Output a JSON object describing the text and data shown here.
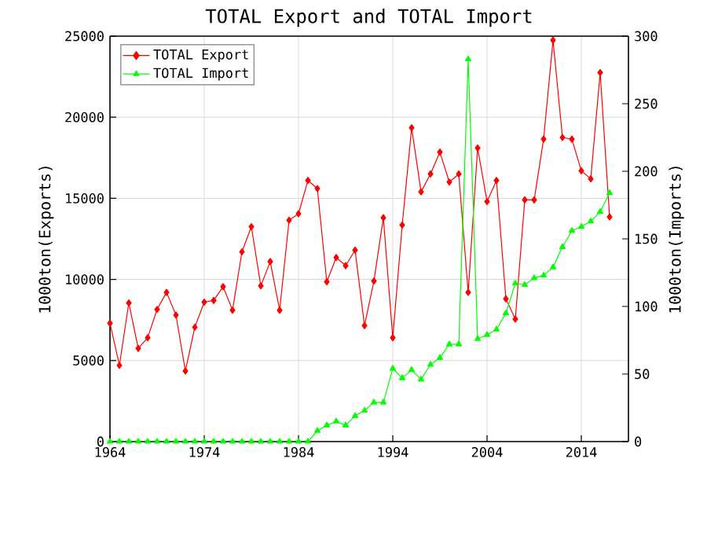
{
  "chart_data": {
    "type": "line",
    "title": "TOTAL Export and TOTAL Import",
    "ylabel": "1000ton(Exports)",
    "y2label": "1000ton(Imports)",
    "x": [
      1964,
      1965,
      1966,
      1967,
      1968,
      1969,
      1970,
      1971,
      1972,
      1973,
      1974,
      1975,
      1976,
      1977,
      1978,
      1979,
      1980,
      1981,
      1982,
      1983,
      1984,
      1985,
      1986,
      1987,
      1988,
      1989,
      1990,
      1991,
      1992,
      1993,
      1994,
      1995,
      1996,
      1997,
      1998,
      1999,
      2000,
      2001,
      2002,
      2003,
      2004,
      2005,
      2006,
      2007,
      2008,
      2009,
      2010,
      2011,
      2012,
      2013,
      2014,
      2015,
      2016,
      2017
    ],
    "series": [
      {
        "name": "TOTAL Export",
        "color": "#ff0000",
        "marker": "diamond",
        "values": [
          7300,
          4700,
          8550,
          5750,
          6400,
          8150,
          9200,
          7800,
          4350,
          7050,
          8600,
          8700,
          9550,
          8100,
          11700,
          13250,
          9600,
          11100,
          8100,
          13650,
          14050,
          16100,
          15600,
          9850,
          11350,
          10850,
          11800,
          7150,
          9900,
          13800,
          6400,
          13350,
          19350,
          15400,
          16500,
          17850,
          16000,
          16500,
          9200,
          18100,
          14800,
          16100,
          8800,
          7550,
          14900,
          14900,
          18650,
          24750,
          18750,
          18650,
          16700,
          16200,
          22750,
          13850
        ]
      },
      {
        "name": "TOTAL Import",
        "color": "#00ff00",
        "marker": "triangle",
        "axis": "y2",
        "values": [
          0,
          0,
          0,
          0,
          0,
          0,
          0,
          0,
          0,
          0,
          0,
          0,
          0,
          0,
          0,
          0,
          0,
          0,
          0,
          0,
          0,
          0,
          8,
          12,
          15,
          12,
          19,
          23,
          29,
          29,
          54,
          47,
          53,
          46,
          57,
          62,
          72,
          72,
          283,
          76,
          79,
          83,
          95,
          117,
          116,
          121,
          123,
          129,
          144,
          156,
          159,
          163,
          170,
          184
        ]
      }
    ],
    "xlim": [
      1964,
      2019
    ],
    "xticks": [
      1964,
      1974,
      1984,
      1994,
      2004,
      2014
    ],
    "ylim": [
      0,
      25000
    ],
    "yticks": [
      0,
      5000,
      10000,
      15000,
      20000,
      25000
    ],
    "y2lim": [
      0,
      300
    ],
    "y2ticks": [
      0,
      50,
      100,
      150,
      200,
      250,
      300
    ],
    "grid": true,
    "legend": "top left"
  }
}
